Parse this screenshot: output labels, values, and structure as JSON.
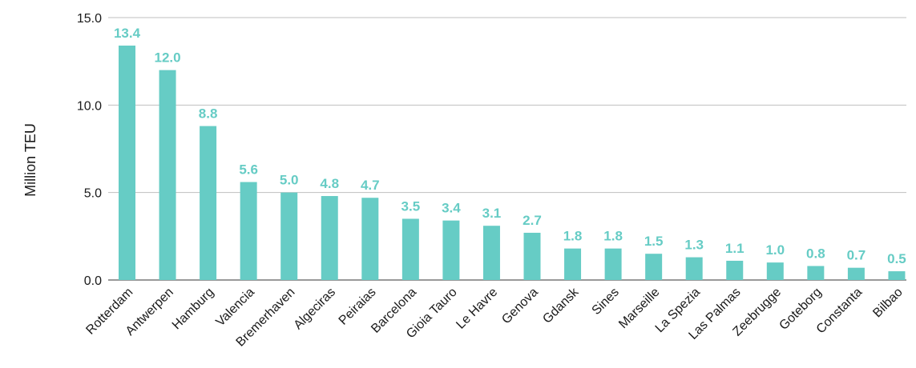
{
  "chart_data": {
    "type": "bar",
    "title": "",
    "xlabel": "",
    "ylabel": "Million TEU",
    "ylim": [
      0,
      15
    ],
    "yticks": [
      "0.0",
      "5.0",
      "10.0",
      "15.0"
    ],
    "grid": true,
    "legend": "none",
    "bar_color": "#66CCC5",
    "label_color": "#66CCC5",
    "categories": [
      "Rotterdam",
      "Antwerpen",
      "Hamburg",
      "Valencia",
      "Bremerhaven",
      "Algeciras",
      "Peiraias",
      "Barcelona",
      "Gioia Tauro",
      "Le Havre",
      "Genova",
      "Gdansk",
      "Sines",
      "Marseille",
      "La Spezia",
      "Las Palmas",
      "Zeebrugge",
      "Goteborg",
      "Constanta",
      "Bilbao"
    ],
    "values": [
      13.4,
      12.0,
      8.8,
      5.6,
      5.0,
      4.8,
      4.7,
      3.5,
      3.4,
      3.1,
      2.7,
      1.8,
      1.8,
      1.5,
      1.3,
      1.1,
      1.0,
      0.8,
      0.7,
      0.5
    ],
    "value_labels": [
      "13.4",
      "12.0",
      "8.8",
      "5.6",
      "5.0",
      "4.8",
      "4.7",
      "3.5",
      "3.4",
      "3.1",
      "2.7",
      "1.8",
      "1.8",
      "1.5",
      "1.3",
      "1.1",
      "1.0",
      "0.8",
      "0.7",
      "0.5"
    ]
  }
}
